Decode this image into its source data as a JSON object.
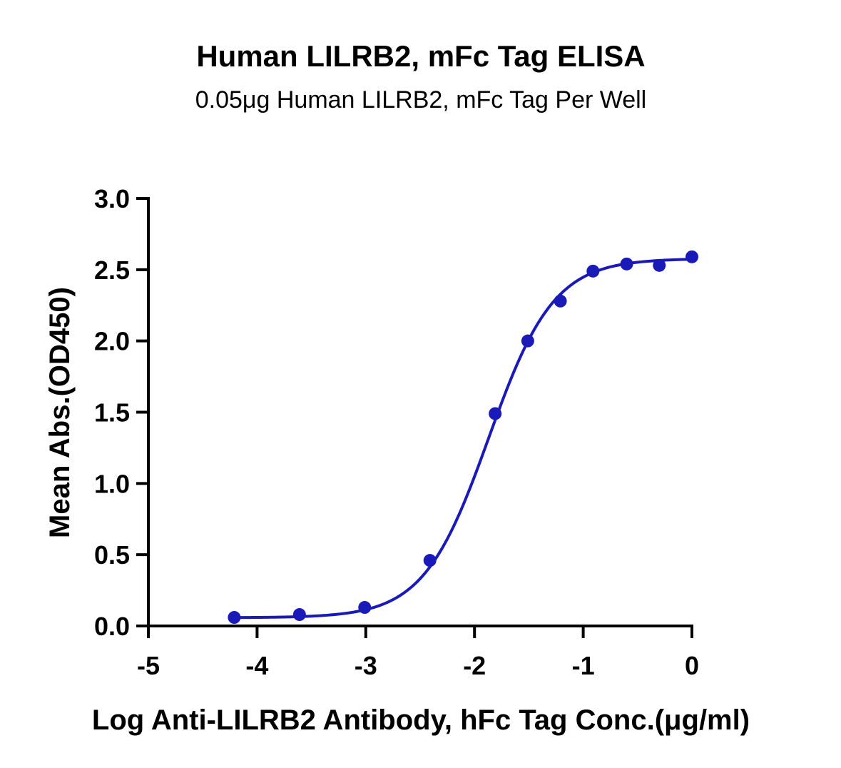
{
  "chart_data": {
    "type": "scatter",
    "title": "Human LILRB2, mFc Tag ELISA",
    "subtitle": "0.05μg Human LILRB2, mFc Tag Per Well",
    "xlabel": "Log Anti-LILRB2 Antibody, hFc Tag Conc.(μg/ml)",
    "ylabel": "Mean Abs.(OD450)",
    "xlim": [
      -5,
      0
    ],
    "ylim": [
      0,
      3.0
    ],
    "x_ticks": [
      -5,
      -4,
      -3,
      -2,
      -1,
      0
    ],
    "x_tick_labels": [
      "-5",
      "-4",
      "-3",
      "-2",
      "-1",
      "0"
    ],
    "y_ticks": [
      0,
      0.5,
      1.0,
      1.5,
      2.0,
      2.5,
      3.0
    ],
    "y_tick_labels": [
      "0.0",
      "0.5",
      "1.0",
      "1.5",
      "2.0",
      "2.5",
      "3.0"
    ],
    "grid": false,
    "legend": "none",
    "series": [
      {
        "x": [
          -4.21,
          -3.61,
          -3.01,
          -2.41,
          -1.81,
          -1.51,
          -1.21,
          -0.91,
          -0.6,
          -0.3,
          0.0
        ],
        "y": [
          0.06,
          0.08,
          0.13,
          0.46,
          1.49,
          2.0,
          2.28,
          2.49,
          2.54,
          2.53,
          2.59
        ],
        "color": "#1a1ab8",
        "marker": "circle",
        "fit": "four-parameter-logistic"
      }
    ]
  }
}
